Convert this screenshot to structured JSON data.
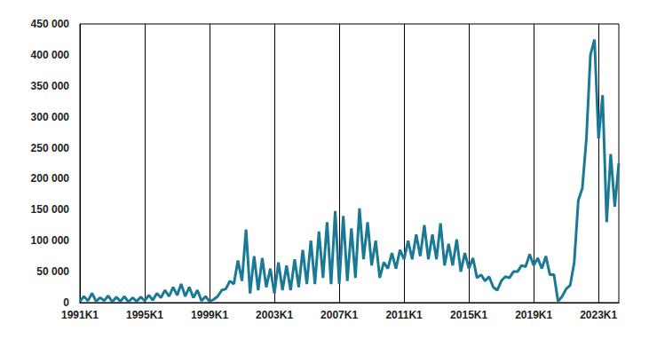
{
  "chart_data": {
    "type": "line",
    "color": "#1a7a96",
    "grid": true,
    "categories": [
      "1991K1",
      null,
      null,
      null,
      null,
      null,
      null,
      null,
      null,
      null,
      null,
      null,
      null,
      null,
      null,
      null,
      "1995K1",
      null,
      null,
      null,
      null,
      null,
      null,
      null,
      null,
      null,
      null,
      null,
      null,
      null,
      null,
      null,
      "1999K1",
      null,
      null,
      null,
      null,
      null,
      null,
      null,
      null,
      null,
      null,
      null,
      null,
      null,
      null,
      null,
      "2003K1",
      null,
      null,
      null,
      null,
      null,
      null,
      null,
      null,
      null,
      null,
      null,
      null,
      null,
      null,
      null,
      "2007K1",
      null,
      null,
      null,
      null,
      null,
      null,
      null,
      null,
      null,
      null,
      null,
      null,
      null,
      null,
      null,
      "2011K1",
      null,
      null,
      null,
      null,
      null,
      null,
      null,
      null,
      null,
      null,
      null,
      null,
      null,
      null,
      null,
      "2015K1",
      null,
      null,
      null,
      null,
      null,
      null,
      null,
      null,
      null,
      null,
      null,
      null,
      null,
      null,
      null,
      "2019K1",
      null,
      null,
      null,
      null,
      null,
      null,
      null,
      null,
      null,
      null,
      null,
      null,
      null,
      null,
      null,
      "2023K1",
      null,
      null,
      null,
      null,
      null
    ],
    "values": [
      2000,
      10000,
      3000,
      15000,
      2000,
      8000,
      3000,
      11000,
      1000,
      9000,
      2000,
      10000,
      1000,
      8000,
      2000,
      9000,
      3000,
      12000,
      4000,
      15000,
      8000,
      20000,
      10000,
      25000,
      12000,
      30000,
      10000,
      25000,
      8000,
      20000,
      3000,
      10000,
      2000,
      5000,
      10000,
      20000,
      22000,
      35000,
      30000,
      68000,
      35000,
      118000,
      15000,
      75000,
      20000,
      72000,
      25000,
      55000,
      15000,
      65000,
      20000,
      60000,
      20000,
      70000,
      25000,
      85000,
      30000,
      100000,
      30000,
      115000,
      40000,
      130000,
      30000,
      148000,
      30000,
      140000,
      35000,
      120000,
      40000,
      152000,
      70000,
      130000,
      60000,
      100000,
      40000,
      65000,
      55000,
      80000,
      55000,
      85000,
      70000,
      100000,
      70000,
      110000,
      75000,
      125000,
      70000,
      110000,
      70000,
      128000,
      60000,
      95000,
      60000,
      102000,
      50000,
      80000,
      55000,
      72000,
      40000,
      45000,
      35000,
      42000,
      25000,
      20000,
      35000,
      42000,
      40000,
      50000,
      50000,
      60000,
      58000,
      78000,
      60000,
      72000,
      55000,
      75000,
      45000,
      45000,
      2000,
      10000,
      22000,
      28000,
      65000,
      165000,
      185000,
      265000,
      400000,
      425000,
      265000,
      335000,
      130000,
      240000,
      155000,
      225000
    ],
    "ylim": [
      0,
      450000
    ],
    "yticks": [
      0,
      {
        "value": 50000,
        "label": "50 000"
      },
      {
        "value": 100000,
        "label": "100 000"
      },
      {
        "value": 150000,
        "label": "150 000"
      },
      {
        "value": 200000,
        "label": "200 000"
      },
      {
        "value": 250000,
        "label": "250 000"
      },
      {
        "value": 300000,
        "label": "300 000"
      },
      {
        "value": 350000,
        "label": "350 000"
      },
      {
        "value": 400000,
        "label": "400 000"
      },
      {
        "value": 450000,
        "label": "450 000"
      }
    ]
  }
}
